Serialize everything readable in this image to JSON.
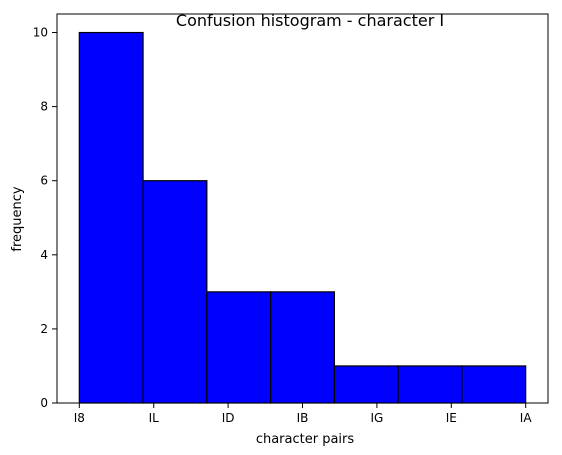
{
  "chart_data": {
    "type": "bar",
    "title": "Confusion histogram - character I",
    "xlabel": "character pairs",
    "ylabel": "frequency",
    "bins": [
      {
        "x0": 0,
        "x1": 1,
        "value": 10
      },
      {
        "x0": 1,
        "x1": 2,
        "value": 6
      },
      {
        "x0": 2,
        "x1": 3,
        "value": 3
      },
      {
        "x0": 3,
        "x1": 4,
        "value": 3
      },
      {
        "x0": 4,
        "x1": 5,
        "value": 1
      },
      {
        "x0": 5,
        "x1": 6,
        "value": 1
      },
      {
        "x0": 6,
        "x1": 7,
        "value": 1
      }
    ],
    "x_ticks": [
      {
        "x": 0,
        "label": "I8"
      },
      {
        "x": 1.1667,
        "label": "IL"
      },
      {
        "x": 2.3333,
        "label": "ID"
      },
      {
        "x": 3.5,
        "label": "IB"
      },
      {
        "x": 4.6667,
        "label": "IG"
      },
      {
        "x": 5.8333,
        "label": "IE"
      },
      {
        "x": 7,
        "label": "IA"
      }
    ],
    "y_ticks": [
      0,
      2,
      4,
      6,
      8,
      10
    ],
    "xlim": [
      -0.35,
      7.35
    ],
    "ylim": [
      0,
      10.5
    ],
    "bar_color": "#0000ff",
    "edge_color": "#000000",
    "grid": false,
    "legend": "none"
  }
}
